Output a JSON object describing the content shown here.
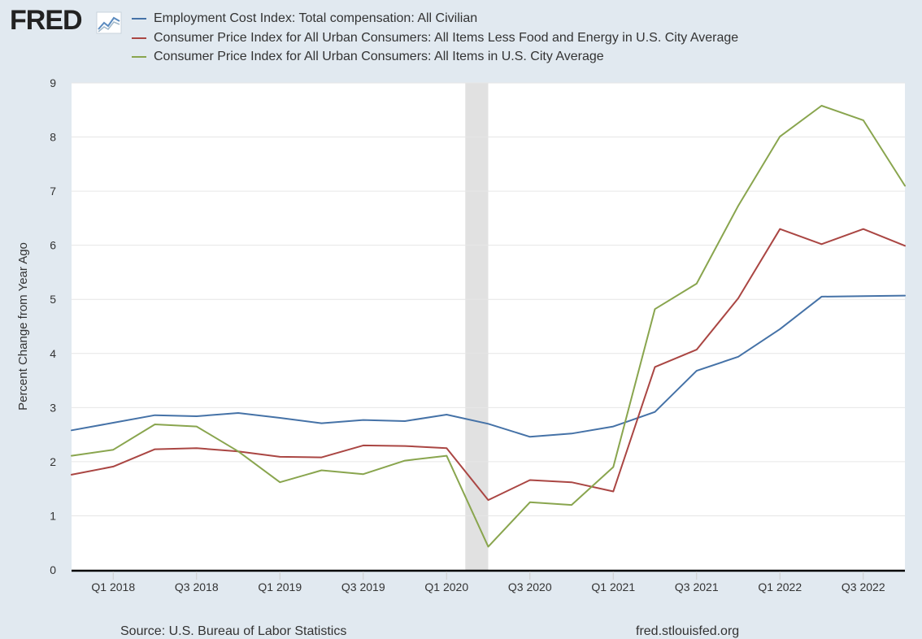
{
  "logo": {
    "text": "FRED"
  },
  "chart_data": {
    "type": "line",
    "title": "",
    "xlabel": "",
    "ylabel": "Percent Change from Year Ago",
    "ylim": [
      0,
      9
    ],
    "yticks": [
      "0",
      "1",
      "2",
      "3",
      "4",
      "5",
      "6",
      "7",
      "8",
      "9"
    ],
    "x": [
      "2017 Q4",
      "2018 Q1",
      "2018 Q2",
      "2018 Q3",
      "2018 Q4",
      "2019 Q1",
      "2019 Q2",
      "2019 Q3",
      "2019 Q4",
      "2020 Q1",
      "2020 Q2",
      "2020 Q3",
      "2020 Q4",
      "2021 Q1",
      "2021 Q2",
      "2021 Q3",
      "2021 Q4",
      "2022 Q1",
      "2022 Q2",
      "2022 Q3",
      "2022 Q4"
    ],
    "xtick_labels": [
      {
        "label": "Q1 2018",
        "index": 1
      },
      {
        "label": "Q3 2018",
        "index": 3
      },
      {
        "label": "Q1 2019",
        "index": 5
      },
      {
        "label": "Q3 2019",
        "index": 7
      },
      {
        "label": "Q1 2020",
        "index": 9
      },
      {
        "label": "Q3 2020",
        "index": 11
      },
      {
        "label": "Q1 2021",
        "index": 13
      },
      {
        "label": "Q3 2021",
        "index": 15
      },
      {
        "label": "Q1 2022",
        "index": 17
      },
      {
        "label": "Q3 2022",
        "index": 19
      }
    ],
    "recession": {
      "from_index": 9.45,
      "to_index": 10.0
    },
    "grid": true,
    "legend_position": "top",
    "series": [
      {
        "name": "Employment Cost Index: Total compensation: All Civilian",
        "color": "#4572a7",
        "values": [
          2.58,
          2.72,
          2.86,
          2.84,
          2.9,
          2.81,
          2.71,
          2.77,
          2.75,
          2.87,
          2.7,
          2.46,
          2.52,
          2.65,
          2.92,
          3.68,
          3.94,
          4.45,
          5.05,
          5.06,
          5.07
        ]
      },
      {
        "name": "Consumer Price Index for All Urban Consumers: All Items Less Food and Energy in U.S. City Average",
        "color": "#aa4643",
        "values": [
          1.76,
          1.91,
          2.23,
          2.25,
          2.19,
          2.09,
          2.08,
          2.3,
          2.29,
          2.25,
          1.29,
          1.66,
          1.62,
          1.45,
          3.75,
          4.07,
          5.02,
          6.3,
          6.02,
          6.3,
          5.99
        ]
      },
      {
        "name": "Consumer Price Index for All Urban Consumers: All Items in U.S. City Average",
        "color": "#89a54e",
        "values": [
          2.11,
          2.22,
          2.69,
          2.65,
          2.19,
          1.62,
          1.84,
          1.77,
          2.02,
          2.11,
          0.43,
          1.25,
          1.2,
          1.9,
          4.82,
          5.29,
          6.73,
          8.01,
          8.58,
          8.31,
          7.1
        ]
      }
    ]
  },
  "footer": {
    "source": "Source: U.S. Bureau of Labor Statistics",
    "url": "fred.stlouisfed.org"
  }
}
